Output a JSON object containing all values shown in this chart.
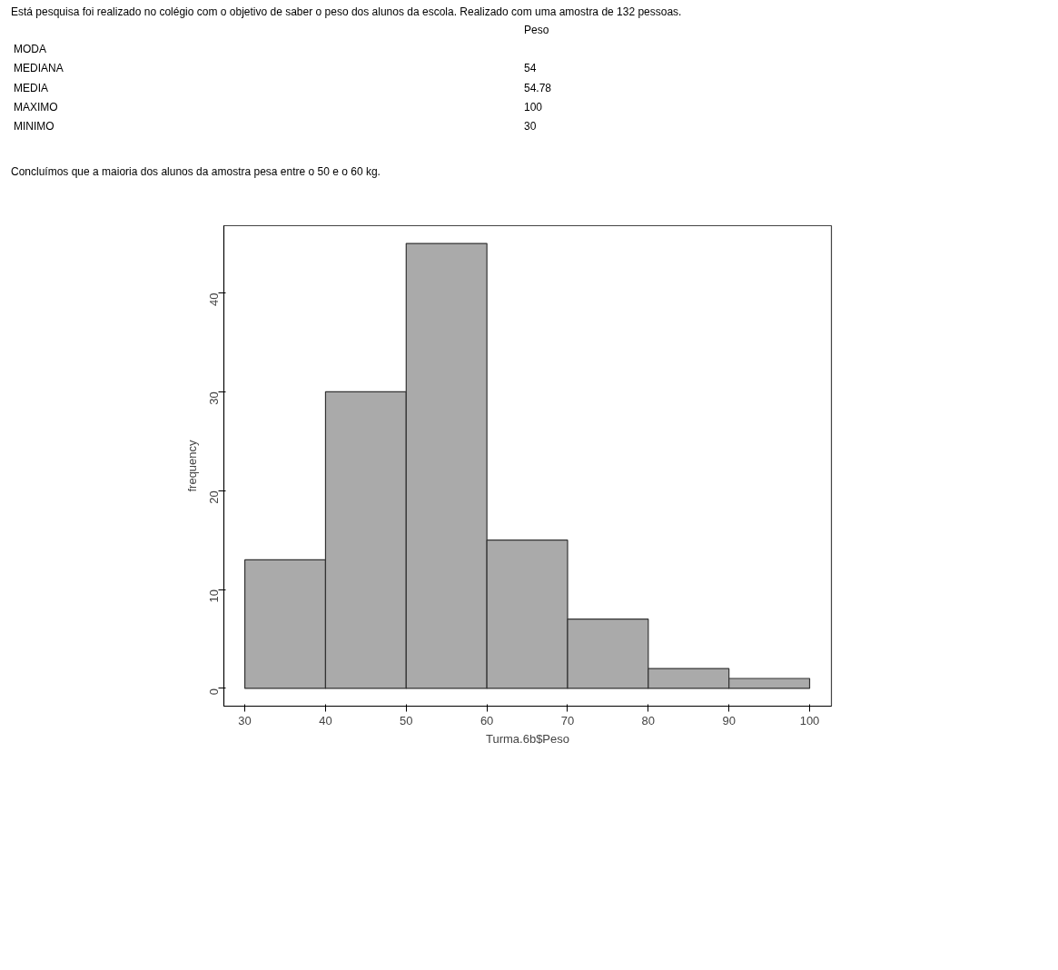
{
  "chart_data": {
    "type": "histogram",
    "xlabel": "Turma.6b$Peso",
    "ylabel": "frequency",
    "bins": [
      30,
      40,
      50,
      60,
      70,
      80,
      90,
      100
    ],
    "values": [
      13,
      30,
      45,
      15,
      7,
      2,
      1
    ],
    "color": "#aaaaaa",
    "xlim": [
      27.4,
      102.7
    ],
    "ylim": [
      -1.8,
      46.8
    ],
    "xticks": [
      30,
      40,
      50,
      60,
      70,
      80,
      90,
      100
    ],
    "yticks": [
      0,
      10,
      20,
      30,
      40
    ],
    "grid": false,
    "annotations": [
      "Está pesquisa foi realizado no colégio com o objetivo de saber o peso dos alunos da escola.  Realizado com uma amostra de 132 pessoas.",
      "Peso",
      "MODA",
      "MEDIANA",
      "54",
      "MEDIA",
      "54.78",
      "MAXIMO",
      "100",
      "MINIMO",
      "30",
      "Concluímos que a maioria dos alunos da amostra pesa entre o 50 e o 60 kg."
    ]
  }
}
